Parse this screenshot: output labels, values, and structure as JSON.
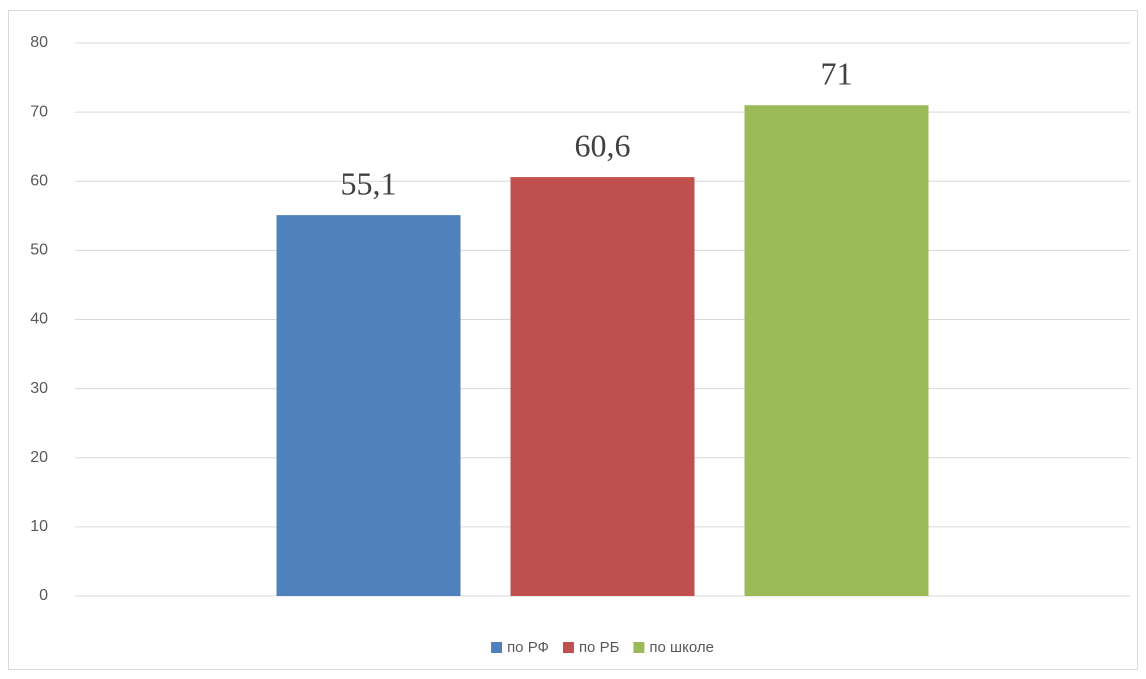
{
  "chart_data": {
    "type": "bar",
    "categories": [
      null
    ],
    "series": [
      {
        "name": "по РФ",
        "color": "#4f81bd",
        "values": [
          55.1
        ],
        "value_labels": [
          "55,1"
        ]
      },
      {
        "name": "по РБ",
        "color": "#c0504d",
        "values": [
          60.6
        ],
        "value_labels": [
          "60,6"
        ]
      },
      {
        "name": "по школе",
        "color": "#9bbb59",
        "values": [
          71
        ]
      }
    ],
    "ylim": [
      0,
      80
    ],
    "yticks": [
      0,
      10,
      20,
      30,
      40,
      50,
      60,
      70,
      80
    ],
    "grid": true,
    "legend": "bottom"
  }
}
